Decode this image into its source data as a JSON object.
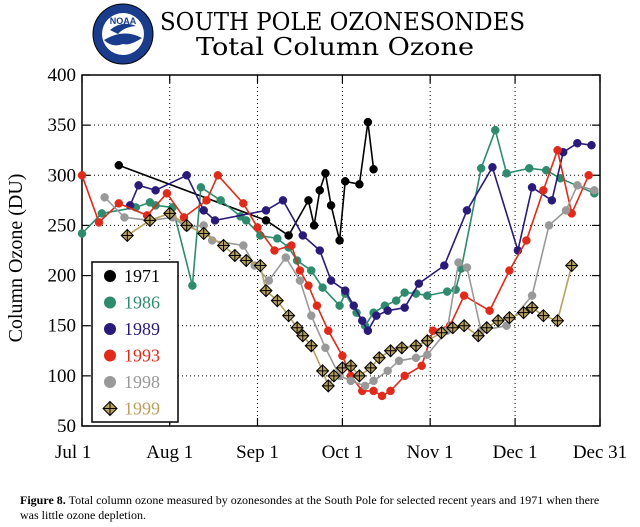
{
  "figure": {
    "title_line1": "SOUTH POLE OZONESONDES",
    "title_line2": "Total Column Ozone",
    "logo_text": "NOAA",
    "caption_label": "Figure 8.",
    "caption_text": "Total column ozone measured by ozonesondes at the South Pole for selected recent years and 1971 when there was little ozone depletion."
  },
  "chart_data": {
    "type": "line",
    "title": "SOUTH POLE OZONESONDES Total Column Ozone",
    "xlabel": "",
    "ylabel": "Column Ozone (DU)",
    "x_ticks": [
      {
        "label": "Jul 1",
        "day": 182
      },
      {
        "label": "Aug 1",
        "day": 213
      },
      {
        "label": "Sep 1",
        "day": 244
      },
      {
        "label": "Oct 1",
        "day": 274
      },
      {
        "label": "Nov 1",
        "day": 305
      },
      {
        "label": "Dec 1",
        "day": 335
      },
      {
        "label": "Dec 31",
        "day": 365
      }
    ],
    "xlim": [
      182,
      365
    ],
    "ylim": [
      50,
      400
    ],
    "y_ticks": [
      50,
      100,
      150,
      200,
      250,
      300,
      350,
      400
    ],
    "grid": "dotted",
    "legend_position": "lower-left",
    "series": [
      {
        "name": "1971",
        "color": "#000000",
        "marker": "circle",
        "points": [
          [
            195,
            310
          ],
          [
            247,
            255
          ],
          [
            255,
            240
          ],
          [
            262,
            275
          ],
          [
            264,
            250
          ],
          [
            266,
            285
          ],
          [
            268,
            302
          ],
          [
            270,
            270
          ],
          [
            273,
            235
          ],
          [
            275,
            294
          ],
          [
            280,
            291
          ],
          [
            283,
            353
          ],
          [
            285,
            306
          ]
        ]
      },
      {
        "name": "1986",
        "color": "#2e8b6d",
        "marker": "circle",
        "points": [
          [
            182,
            242
          ],
          [
            189,
            262
          ],
          [
            201,
            268
          ],
          [
            206,
            273
          ],
          [
            208,
            270
          ],
          [
            214,
            268
          ],
          [
            221,
            190
          ],
          [
            224,
            288
          ],
          [
            231,
            275
          ],
          [
            238,
            259
          ],
          [
            240,
            255
          ],
          [
            245,
            240
          ],
          [
            251,
            237
          ],
          [
            255,
            228
          ],
          [
            258,
            215
          ],
          [
            263,
            205
          ],
          [
            267,
            188
          ],
          [
            273,
            170
          ],
          [
            275,
            182
          ],
          [
            279,
            163
          ],
          [
            282,
            150
          ],
          [
            285,
            163
          ],
          [
            289,
            170
          ],
          [
            293,
            175
          ],
          [
            296,
            183
          ],
          [
            300,
            182
          ],
          [
            304,
            180
          ],
          [
            311,
            184
          ],
          [
            314,
            186
          ],
          [
            316,
            207
          ],
          [
            323,
            307
          ],
          [
            328,
            345
          ],
          [
            332,
            302
          ],
          [
            340,
            307
          ],
          [
            346,
            305
          ],
          [
            351,
            297
          ],
          [
            363,
            282
          ]
        ]
      },
      {
        "name": "1989",
        "color": "#2a1a7a",
        "marker": "circle",
        "points": [
          [
            199,
            270
          ],
          [
            202,
            290
          ],
          [
            208,
            285
          ],
          [
            219,
            300
          ],
          [
            225,
            265
          ],
          [
            229,
            255
          ],
          [
            247,
            265
          ],
          [
            253,
            275
          ],
          [
            260,
            240
          ],
          [
            266,
            225
          ],
          [
            270,
            195
          ],
          [
            275,
            185
          ],
          [
            278,
            170
          ],
          [
            281,
            155
          ],
          [
            283,
            145
          ],
          [
            286,
            160
          ],
          [
            290,
            165
          ],
          [
            296,
            168
          ],
          [
            301,
            192
          ],
          [
            310,
            210
          ],
          [
            318,
            265
          ],
          [
            327,
            308
          ],
          [
            336,
            225
          ],
          [
            341,
            288
          ],
          [
            348,
            275
          ],
          [
            352,
            323
          ],
          [
            357,
            332
          ],
          [
            362,
            330
          ]
        ]
      },
      {
        "name": "1993",
        "color": "#e02a1a",
        "marker": "circle",
        "points": [
          [
            182,
            300
          ],
          [
            188,
            253
          ],
          [
            195,
            272
          ],
          [
            205,
            260
          ],
          [
            212,
            282
          ],
          [
            218,
            258
          ],
          [
            226,
            275
          ],
          [
            230,
            300
          ],
          [
            239,
            272
          ],
          [
            244,
            248
          ],
          [
            250,
            225
          ],
          [
            256,
            230
          ],
          [
            259,
            205
          ],
          [
            262,
            190
          ],
          [
            265,
            170
          ],
          [
            269,
            145
          ],
          [
            274,
            120
          ],
          [
            277,
            100
          ],
          [
            281,
            85
          ],
          [
            285,
            85
          ],
          [
            288,
            80
          ],
          [
            291,
            85
          ],
          [
            296,
            100
          ],
          [
            302,
            110
          ],
          [
            306,
            145
          ],
          [
            312,
            150
          ],
          [
            317,
            180
          ],
          [
            326,
            165
          ],
          [
            333,
            205
          ],
          [
            339,
            235
          ],
          [
            345,
            285
          ],
          [
            350,
            325
          ],
          [
            355,
            262
          ],
          [
            361,
            300
          ]
        ]
      },
      {
        "name": "1998",
        "color": "#999999",
        "marker": "circle",
        "points": [
          [
            190,
            278
          ],
          [
            197,
            258
          ],
          [
            206,
            255
          ],
          [
            214,
            258
          ],
          [
            219,
            248
          ],
          [
            225,
            250
          ],
          [
            228,
            235
          ],
          [
            239,
            230
          ],
          [
            243,
            210
          ],
          [
            248,
            195
          ],
          [
            254,
            218
          ],
          [
            259,
            195
          ],
          [
            263,
            160
          ],
          [
            268,
            128
          ],
          [
            273,
            100
          ],
          [
            277,
            95
          ],
          [
            282,
            90
          ],
          [
            285,
            95
          ],
          [
            290,
            105
          ],
          [
            294,
            115
          ],
          [
            300,
            118
          ],
          [
            304,
            121
          ],
          [
            311,
            145
          ],
          [
            315,
            213
          ],
          [
            318,
            208
          ],
          [
            323,
            145
          ],
          [
            332,
            150
          ],
          [
            341,
            180
          ],
          [
            347,
            250
          ],
          [
            353,
            265
          ],
          [
            357,
            290
          ],
          [
            363,
            285
          ]
        ]
      },
      {
        "name": "1999",
        "color": "#b8a060",
        "marker": "diamond",
        "points": [
          [
            198,
            240
          ],
          [
            206,
            255
          ],
          [
            213,
            262
          ],
          [
            219,
            250
          ],
          [
            225,
            242
          ],
          [
            232,
            230
          ],
          [
            236,
            220
          ],
          [
            240,
            215
          ],
          [
            245,
            210
          ],
          [
            247,
            185
          ],
          [
            251,
            175
          ],
          [
            255,
            160
          ],
          [
            258,
            148
          ],
          [
            260,
            140
          ],
          [
            263,
            130
          ],
          [
            267,
            105
          ],
          [
            269,
            90
          ],
          [
            271,
            100
          ],
          [
            274,
            108
          ],
          [
            277,
            110
          ],
          [
            280,
            100
          ],
          [
            284,
            108
          ],
          [
            287,
            118
          ],
          [
            291,
            125
          ],
          [
            295,
            128
          ],
          [
            300,
            130
          ],
          [
            304,
            135
          ],
          [
            309,
            143
          ],
          [
            313,
            148
          ],
          [
            317,
            150
          ],
          [
            322,
            140
          ],
          [
            325,
            148
          ],
          [
            329,
            155
          ],
          [
            333,
            158
          ],
          [
            338,
            163
          ],
          [
            341,
            168
          ],
          [
            345,
            160
          ],
          [
            350,
            155
          ],
          [
            355,
            210
          ]
        ]
      }
    ]
  }
}
